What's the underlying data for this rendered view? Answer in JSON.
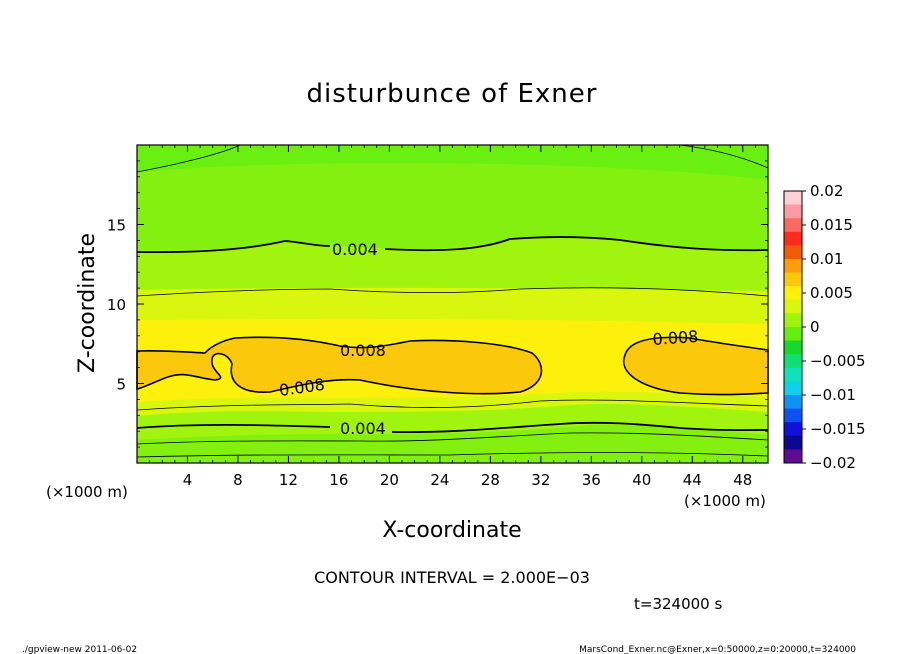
{
  "chart_data": {
    "type": "heatmap",
    "title": "disturbunce of Exner",
    "xlabel": "X-coordinate",
    "ylabel": "Z-coordinate",
    "x_unit": "(×1000 m)",
    "y_unit": "(×1000 m)",
    "xlim": [
      0,
      50
    ],
    "ylim": [
      0,
      20
    ],
    "x_ticks": [
      4,
      8,
      12,
      16,
      20,
      24,
      28,
      32,
      36,
      40,
      44,
      48
    ],
    "y_ticks": [
      5,
      10,
      15
    ],
    "colorbar": {
      "levels": [
        0.02,
        0.015,
        0.01,
        0.005,
        0,
        -0.005,
        -0.01,
        -0.015,
        -0.02
      ],
      "labels": [
        "0.02",
        "0.015",
        "0.01",
        "0.005",
        "0",
        "−0.005",
        "−0.01",
        "−0.015",
        "−0.02"
      ],
      "colors": [
        "#fdd0d8",
        "#fd9aa4",
        "#fb6a60",
        "#fc2b1c",
        "#f25a0a",
        "#fa9e0c",
        "#fbc80c",
        "#fdf00a",
        "#d8f60e",
        "#a0f40e",
        "#66ee10",
        "#16d82a",
        "#10e072",
        "#12e0b8",
        "#10d0e8",
        "#1092f4",
        "#1050f0",
        "#1010d8",
        "#0c0890",
        "#5e0c92"
      ]
    },
    "contour_labels": [
      {
        "text": "0.004",
        "x": 17.5,
        "z": 13.4
      },
      {
        "text": "0.008",
        "x": 18.0,
        "z": 7.0
      },
      {
        "text": "0.008",
        "x": 13.5,
        "z": 4.5
      },
      {
        "text": "0.008",
        "x": 42.5,
        "z": 7.9
      },
      {
        "text": "0.004",
        "x": 17.5,
        "z": 2.2
      }
    ],
    "annotation": "CONTOUR INTERVAL = 2.000E−03",
    "time_label": "t=324000 s"
  },
  "footer": {
    "left": "./gpview-new   2011-06-02",
    "right": "MarsCond_Exner.nc@Exner,x=0:50000,z=0:20000,t=324000"
  }
}
